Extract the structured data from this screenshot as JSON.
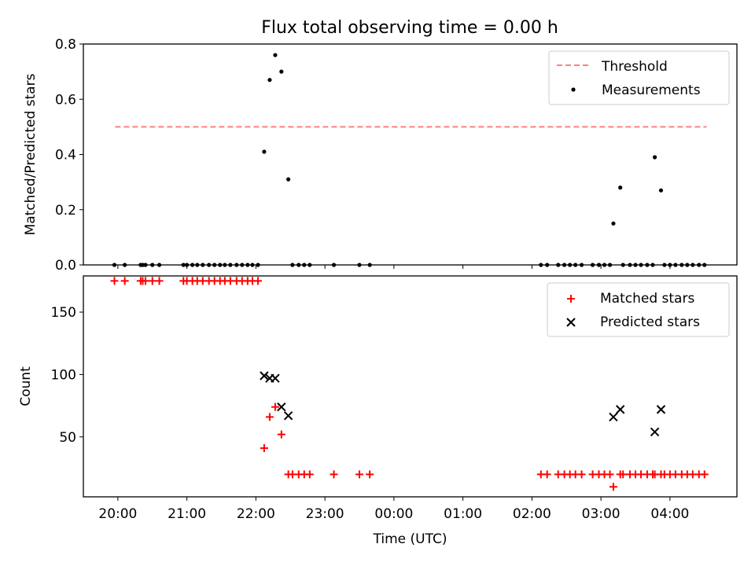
{
  "title": "Flux total observing time = 0.00 h",
  "chart_data": [
    {
      "type": "scatter",
      "ylabel": "Matched/Predicted stars",
      "ylim": [
        0,
        0.8
      ],
      "yticks": [
        "0.0",
        "0.2",
        "0.4",
        "0.6",
        "0.8"
      ],
      "xlim_hours": [
        19.5,
        28.97
      ],
      "legend_position": "top-right",
      "threshold": {
        "name": "Threshold",
        "y": 0.5,
        "x_start_hours": 19.96,
        "x_end_hours": 28.53,
        "color": "#ff7f7f"
      },
      "series": [
        {
          "name": "Measurements",
          "color": "#000000",
          "points": [
            [
              19.95,
              0
            ],
            [
              20.1,
              0
            ],
            [
              20.33,
              0
            ],
            [
              20.36,
              0
            ],
            [
              20.4,
              0
            ],
            [
              20.5,
              0
            ],
            [
              20.6,
              0
            ],
            [
              20.95,
              0
            ],
            [
              21.0,
              0
            ],
            [
              21.08,
              0
            ],
            [
              21.15,
              0
            ],
            [
              21.23,
              0
            ],
            [
              21.32,
              0
            ],
            [
              21.4,
              0
            ],
            [
              21.48,
              0
            ],
            [
              21.55,
              0
            ],
            [
              21.63,
              0
            ],
            [
              21.72,
              0
            ],
            [
              21.8,
              0
            ],
            [
              21.88,
              0
            ],
            [
              21.95,
              0
            ],
            [
              22.03,
              0
            ],
            [
              22.12,
              0.41
            ],
            [
              22.2,
              0.67
            ],
            [
              22.28,
              0.76
            ],
            [
              22.37,
              0.7
            ],
            [
              22.47,
              0.31
            ],
            [
              22.53,
              0
            ],
            [
              22.62,
              0
            ],
            [
              22.7,
              0
            ],
            [
              22.78,
              0
            ],
            [
              23.13,
              0
            ],
            [
              23.5,
              0
            ],
            [
              23.65,
              0
            ],
            [
              26.13,
              0
            ],
            [
              26.22,
              0
            ],
            [
              26.38,
              0
            ],
            [
              26.47,
              0
            ],
            [
              26.55,
              0
            ],
            [
              26.63,
              0
            ],
            [
              26.72,
              0
            ],
            [
              26.88,
              0
            ],
            [
              26.97,
              0
            ],
            [
              27.05,
              0
            ],
            [
              27.13,
              0
            ],
            [
              27.18,
              0.15
            ],
            [
              27.28,
              0.28
            ],
            [
              27.32,
              0
            ],
            [
              27.42,
              0
            ],
            [
              27.5,
              0
            ],
            [
              27.58,
              0
            ],
            [
              27.67,
              0
            ],
            [
              27.75,
              0
            ],
            [
              27.78,
              0.39
            ],
            [
              27.87,
              0.27
            ],
            [
              27.92,
              0
            ],
            [
              28.0,
              0
            ],
            [
              28.08,
              0
            ],
            [
              28.17,
              0
            ],
            [
              28.25,
              0
            ],
            [
              28.33,
              0
            ],
            [
              28.42,
              0
            ],
            [
              28.5,
              0
            ]
          ]
        }
      ]
    },
    {
      "type": "scatter",
      "ylabel": "Count",
      "xlabel": "Time (UTC)",
      "ylim": [
        2,
        179
      ],
      "yticks": [
        "50",
        "100",
        "150"
      ],
      "xlim_hours": [
        19.5,
        28.97
      ],
      "xticks": [
        "20:00",
        "21:00",
        "22:00",
        "23:00",
        "00:00",
        "01:00",
        "02:00",
        "03:00",
        "04:00"
      ],
      "legend_position": "top-right",
      "series": [
        {
          "name": "Matched stars",
          "marker": "plus",
          "color": "#ff0000",
          "points": [
            [
              19.95,
              175
            ],
            [
              20.1,
              175
            ],
            [
              20.33,
              175
            ],
            [
              20.36,
              175
            ],
            [
              20.4,
              175
            ],
            [
              20.5,
              175
            ],
            [
              20.6,
              175
            ],
            [
              20.95,
              175
            ],
            [
              21.0,
              175
            ],
            [
              21.08,
              175
            ],
            [
              21.15,
              175
            ],
            [
              21.23,
              175
            ],
            [
              21.32,
              175
            ],
            [
              21.4,
              175
            ],
            [
              21.48,
              175
            ],
            [
              21.55,
              175
            ],
            [
              21.63,
              175
            ],
            [
              21.72,
              175
            ],
            [
              21.8,
              175
            ],
            [
              21.88,
              175
            ],
            [
              21.95,
              175
            ],
            [
              22.03,
              175
            ],
            [
              22.12,
              41
            ],
            [
              22.2,
              66
            ],
            [
              22.28,
              74
            ],
            [
              22.37,
              52
            ],
            [
              22.47,
              20
            ],
            [
              22.53,
              20
            ],
            [
              22.62,
              20
            ],
            [
              22.7,
              20
            ],
            [
              22.78,
              20
            ],
            [
              23.13,
              20
            ],
            [
              23.5,
              20
            ],
            [
              23.65,
              20
            ],
            [
              26.13,
              20
            ],
            [
              26.22,
              20
            ],
            [
              26.38,
              20
            ],
            [
              26.47,
              20
            ],
            [
              26.55,
              20
            ],
            [
              26.63,
              20
            ],
            [
              26.72,
              20
            ],
            [
              26.88,
              20
            ],
            [
              26.97,
              20
            ],
            [
              27.05,
              20
            ],
            [
              27.13,
              20
            ],
            [
              27.18,
              10
            ],
            [
              27.28,
              20
            ],
            [
              27.32,
              20
            ],
            [
              27.42,
              20
            ],
            [
              27.5,
              20
            ],
            [
              27.58,
              20
            ],
            [
              27.67,
              20
            ],
            [
              27.75,
              20
            ],
            [
              27.78,
              20
            ],
            [
              27.87,
              20
            ],
            [
              27.92,
              20
            ],
            [
              28.0,
              20
            ],
            [
              28.08,
              20
            ],
            [
              28.17,
              20
            ],
            [
              28.25,
              20
            ],
            [
              28.33,
              20
            ],
            [
              28.42,
              20
            ],
            [
              28.5,
              20
            ]
          ]
        },
        {
          "name": "Predicted stars",
          "marker": "x",
          "color": "#000000",
          "points": [
            [
              22.12,
              99
            ],
            [
              22.2,
              97
            ],
            [
              22.28,
              97
            ],
            [
              22.37,
              74
            ],
            [
              22.47,
              67
            ],
            [
              27.18,
              66
            ],
            [
              27.28,
              72
            ],
            [
              27.78,
              54
            ],
            [
              27.87,
              72
            ]
          ]
        }
      ]
    }
  ]
}
